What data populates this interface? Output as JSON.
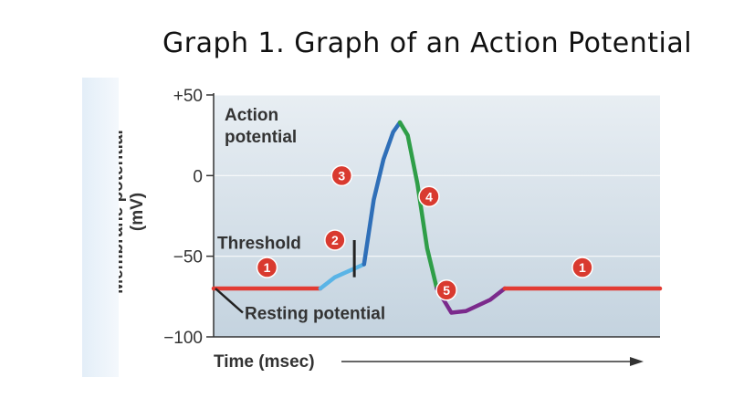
{
  "title": "Graph 1. Graph of an Action Potential",
  "chart_data": {
    "type": "line",
    "xlabel": "Time (msec)",
    "ylabel": "Membrane potential (mV)",
    "ylim": [
      -100,
      50
    ],
    "yticks": [
      "+50",
      "0",
      "−50",
      "−100"
    ],
    "ytick_values": [
      50,
      0,
      -50,
      -100
    ],
    "grid": true,
    "colors": {
      "resting": "#e23b33",
      "depolarizing": "#5ab4e6",
      "rising": "#2f6fb8",
      "falling": "#2f9e48",
      "undershoot": "#7b2a8c",
      "badge": "#d93a2f"
    },
    "series": [
      {
        "phase": 1,
        "color": "#e23b33",
        "x": [
          0,
          1.1
        ],
        "y": [
          -70,
          -70
        ]
      },
      {
        "phase": 2,
        "color": "#5ab4e6",
        "x": [
          1.1,
          1.25,
          1.4,
          1.55
        ],
        "y": [
          -70,
          -63,
          -59,
          -55
        ]
      },
      {
        "phase": 3,
        "color": "#2f6fb8",
        "x": [
          1.55,
          1.65,
          1.75,
          1.85,
          1.92
        ],
        "y": [
          -55,
          -15,
          10,
          27,
          33
        ]
      },
      {
        "phase": 4,
        "color": "#2f9e48",
        "x": [
          1.92,
          2.0,
          2.1,
          2.2,
          2.3
        ],
        "y": [
          33,
          25,
          -5,
          -45,
          -70
        ]
      },
      {
        "phase": 5,
        "color": "#7b2a8c",
        "x": [
          2.3,
          2.45,
          2.6,
          2.85,
          3.0
        ],
        "y": [
          -70,
          -85,
          -84,
          -77,
          -70
        ]
      },
      {
        "phase": 1,
        "color": "#e23b33",
        "x": [
          3.0,
          4.6
        ],
        "y": [
          -70,
          -70
        ]
      }
    ],
    "annotations": {
      "action_potential": [
        "Action",
        "potential"
      ],
      "threshold": "Threshold",
      "resting": "Resting potential"
    },
    "phase_labels": [
      {
        "text": "1",
        "x": 0.55,
        "y": -57
      },
      {
        "text": "2",
        "x": 1.25,
        "y": -40
      },
      {
        "text": "3",
        "x": 1.32,
        "y": 0
      },
      {
        "text": "4",
        "x": 2.22,
        "y": -13
      },
      {
        "text": "5",
        "x": 2.4,
        "y": -71
      },
      {
        "text": "1",
        "x": 3.8,
        "y": -57
      }
    ]
  }
}
